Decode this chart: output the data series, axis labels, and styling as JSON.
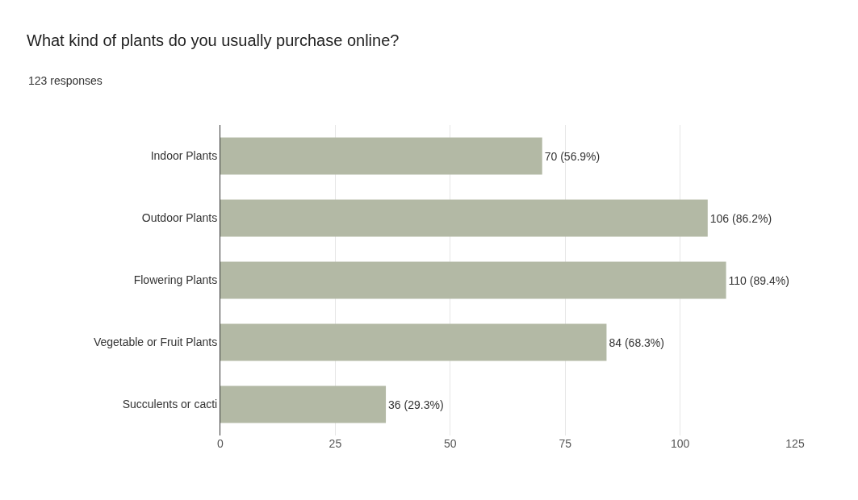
{
  "chart_data": {
    "type": "bar",
    "orientation": "horizontal",
    "title": "What kind of plants do you usually purchase online?",
    "subtitle": "123 responses",
    "categories": [
      "Indoor Plants",
      "Outdoor Plants",
      "Flowering Plants",
      "Vegetable or Fruit Plants",
      "Succulents or cacti"
    ],
    "values": [
      70,
      106,
      110,
      84,
      36
    ],
    "value_labels": [
      "70 (56.9%)",
      "106 (86.2%)",
      "110 (89.4%)",
      "84 (68.3%)",
      "36 (29.3%)"
    ],
    "color": "#b3b9a5",
    "xlim": [
      0,
      125
    ],
    "xticks": [
      0,
      25,
      50,
      75,
      100,
      125
    ],
    "grid": "x"
  }
}
